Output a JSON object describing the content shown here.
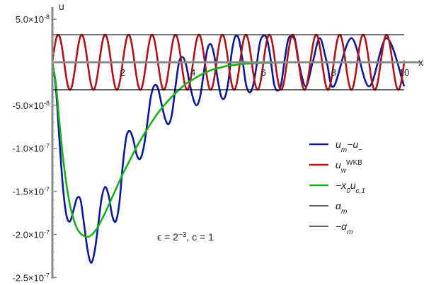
{
  "chart_data": {
    "type": "line",
    "xlabel": "x",
    "ylabel": "u",
    "xlim": [
      0,
      10
    ],
    "ylim": [
      -2.5e-07,
      5e-08
    ],
    "x_tick_labels": [
      {
        "value": 2,
        "label": "2"
      },
      {
        "value": 4,
        "label": "4"
      },
      {
        "value": 6,
        "label": "6"
      },
      {
        "value": 8,
        "label": "8"
      },
      {
        "value": 10,
        "label": "10"
      }
    ],
    "y_tick_labels": [
      {
        "value": 5e-08,
        "mantissa": "5.0",
        "exponent": "-8"
      },
      {
        "value": -5e-08,
        "mantissa": "-5.0",
        "exponent": "-8"
      },
      {
        "value": -1e-07,
        "mantissa": "-1.0",
        "exponent": "-7"
      },
      {
        "value": -1.5e-07,
        "mantissa": "-1.5",
        "exponent": "-7"
      },
      {
        "value": -2e-07,
        "mantissa": "-2.0",
        "exponent": "-7"
      },
      {
        "value": -2.5e-07,
        "mantissa": "-2.5",
        "exponent": "-7"
      }
    ],
    "tick_base": "10",
    "annotation": {
      "parts": [
        "ϵ = 2",
        "−3",
        ", c = 1"
      ]
    },
    "series": [
      {
        "key": "um_minus",
        "legend": {
          "base": "u",
          "sub": "m",
          "mid": "−u",
          "sub2": "−"
        },
        "color": "#0a1a9c",
        "x": [
          0,
          0.1,
          0.2,
          0.3,
          0.4,
          0.5,
          0.6,
          0.7,
          0.8,
          0.9,
          1.0,
          1.1,
          1.2,
          1.3,
          1.4,
          1.5,
          1.6,
          1.7,
          1.8,
          1.9,
          2.0,
          2.1,
          2.2,
          2.3,
          2.4,
          2.5,
          2.6,
          2.7,
          2.8,
          2.9,
          3.0,
          3.1,
          3.2,
          3.3,
          3.4,
          3.5,
          3.6,
          3.7,
          3.8,
          3.9,
          4.0,
          4.1,
          4.2,
          4.3,
          4.4,
          4.5,
          4.6,
          4.7,
          4.8,
          4.9,
          5.0,
          5.1,
          5.2,
          5.3,
          5.4,
          5.5,
          5.6,
          5.7,
          5.8,
          5.9,
          6.0,
          6.1,
          6.2,
          6.3,
          6.4,
          6.5,
          6.6,
          6.7,
          6.8,
          6.9,
          7.0,
          7.2,
          7.4,
          7.6,
          7.8,
          8.0,
          8.5,
          9.0,
          9.5,
          10.0
        ],
        "y": [
          0,
          -3e-08,
          -9e-08,
          -1.45e-07,
          -1.78e-07,
          -1.85e-07,
          -1.72e-07,
          -1.58e-07,
          -1.6e-07,
          -1.88e-07,
          -2.18e-07,
          -2.33e-07,
          -2.2e-07,
          -1.9e-07,
          -1.58e-07,
          -1.45e-07,
          -1.55e-07,
          -1.78e-07,
          -1.85e-07,
          -1.65e-07,
          -1.2e-07,
          -8.7e-08,
          -8e-08,
          -9e-08,
          -1.08e-07,
          -1.12e-07,
          -9.8e-08,
          -7e-08,
          -4e-08,
          -2.7e-08,
          -3e-08,
          -4.8e-08,
          -6.5e-08,
          -7.2e-08,
          -6e-08,
          -2.8e-08,
          0.0,
          6e-09,
          -3e-09,
          -2.4e-08,
          -4.2e-08,
          -5e-08,
          -4e-08,
          -1.3e-08,
          1.4e-08,
          2.1e-08,
          8e-09,
          -2e-08,
          -4e-08,
          -4.1e-08,
          -2.3e-08,
          1.2e-08,
          3e-08,
          2.7e-08,
          4e-09,
          -2.5e-08,
          -3.5e-08,
          -2.8e-08,
          -5e-09,
          2.3e-08,
          3.1e-08,
          2.7e-08,
          5e-09,
          -2.5e-08,
          -3.3e-08,
          -2.6e-08,
          2e-09,
          2.6e-08,
          3e-08,
          2.4e-08,
          0.0,
          -2.8e-08,
          0.0,
          2.8e-08,
          0.0,
          -2.8e-08,
          2.8e-08,
          -2.8e-08,
          2.8e-08,
          -2.8e-08
        ]
      },
      {
        "key": "u_wkb",
        "legend": {
          "base": "u",
          "sub": "w",
          "sup": "WKB"
        },
        "color": "#b0121a",
        "amplitude": 3.2e-08,
        "cycles_per_unit": 1.5,
        "x_range": [
          0,
          10
        ]
      },
      {
        "key": "x0_uc1",
        "legend": {
          "base": "−x",
          "sub": "0",
          "mid": "u",
          "sub2": "c,1"
        },
        "color": "#19b119",
        "x": [
          0,
          0.1,
          0.2,
          0.3,
          0.4,
          0.5,
          0.6,
          0.7,
          0.8,
          0.9,
          1.0,
          1.1,
          1.2,
          1.3,
          1.4,
          1.5,
          1.6,
          1.8,
          2.0,
          2.2,
          2.4,
          2.6,
          2.8,
          3.0,
          3.2,
          3.4,
          3.6,
          3.8,
          4.0,
          4.2,
          4.4,
          4.6,
          4.8,
          5.0,
          5.2,
          5.4,
          5.6,
          5.8,
          6.0,
          6.5,
          7.0,
          7.5,
          8.0,
          8.5,
          9.0,
          9.5,
          10.0
        ],
        "y": [
          0,
          -2.5e-08,
          -7e-08,
          -1.1e-07,
          -1.42e-07,
          -1.66e-07,
          -1.82e-07,
          -1.93e-07,
          -1.99e-07,
          -2.02e-07,
          -2.03e-07,
          -2.01e-07,
          -1.97e-07,
          -1.91e-07,
          -1.83e-07,
          -1.75e-07,
          -1.66e-07,
          -1.48e-07,
          -1.3e-07,
          -1.14e-07,
          -9.8e-08,
          -8.4e-08,
          -7.1e-08,
          -5.9e-08,
          -4.9e-08,
          -4e-08,
          -3.2e-08,
          -2.5e-08,
          -2e-08,
          -1.5e-08,
          -1.1e-08,
          -8e-09,
          -6e-09,
          -4e-09,
          -3e-09,
          -2e-09,
          -1.5e-09,
          -1e-09,
          -7e-10,
          -3e-10,
          -1e-10,
          -5e-11,
          0,
          0,
          0,
          0,
          0
        ]
      },
      {
        "key": "alpha_m",
        "legend": {
          "base": "α",
          "sub": "m"
        },
        "color": "#000000",
        "value": 3.2e-08
      },
      {
        "key": "neg_alpha_m",
        "legend": {
          "base": "−α",
          "sub": "m"
        },
        "color": "#000000",
        "value": -3.2e-08
      }
    ]
  }
}
